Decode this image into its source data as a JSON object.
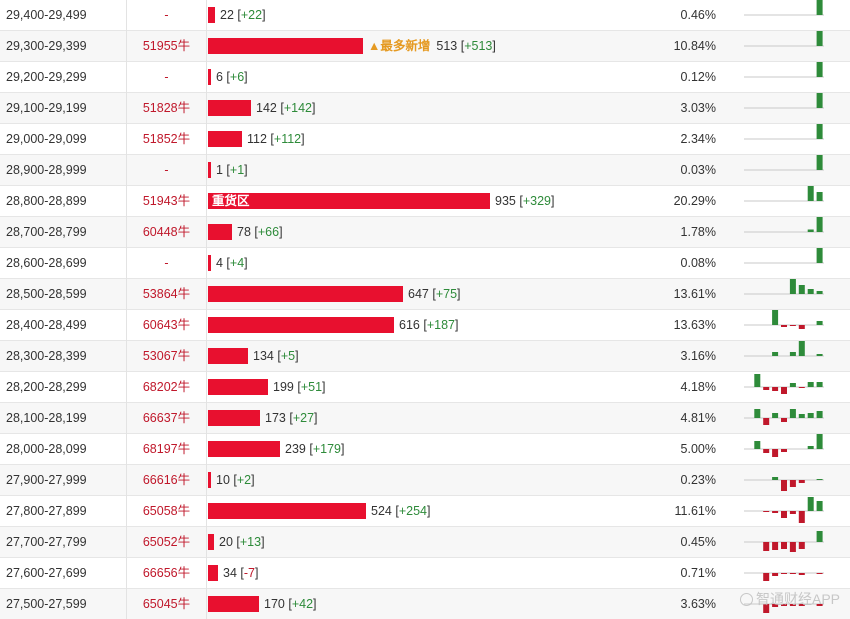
{
  "colors": {
    "bar": "#e8102f",
    "positive": "#2e8b3a",
    "negative": "#c0182b",
    "tag": "#e59a22"
  },
  "bar_max_count": 935,
  "rows": [
    {
      "range": "29,400-29,499",
      "date": "-",
      "count": "22",
      "change": "+22",
      "pct": "0.46%",
      "tag": "",
      "inbar": "",
      "spark": [
        0,
        0,
        0,
        0,
        0,
        0,
        0,
        0,
        30
      ]
    },
    {
      "range": "29,300-29,399",
      "date": "51955牛",
      "count": "513",
      "change": "+513",
      "pct": "10.84%",
      "tag": "▲最多新增",
      "inbar": "",
      "spark": [
        0,
        0,
        0,
        0,
        0,
        0,
        0,
        0,
        30
      ]
    },
    {
      "range": "29,200-29,299",
      "date": "-",
      "count": "6",
      "change": "+6",
      "pct": "0.12%",
      "tag": "",
      "inbar": "",
      "spark": [
        0,
        0,
        0,
        0,
        0,
        0,
        0,
        0,
        30
      ]
    },
    {
      "range": "29,100-29,199",
      "date": "51828牛",
      "count": "142",
      "change": "+142",
      "pct": "3.03%",
      "tag": "",
      "inbar": "",
      "spark": [
        0,
        0,
        0,
        0,
        0,
        0,
        0,
        0,
        30
      ]
    },
    {
      "range": "29,000-29,099",
      "date": "51852牛",
      "count": "112",
      "change": "+112",
      "pct": "2.34%",
      "tag": "",
      "inbar": "",
      "spark": [
        0,
        0,
        0,
        0,
        0,
        0,
        0,
        0,
        30
      ]
    },
    {
      "range": "28,900-28,999",
      "date": "-",
      "count": "1",
      "change": "+1",
      "pct": "0.03%",
      "tag": "",
      "inbar": "",
      "spark": [
        0,
        0,
        0,
        0,
        0,
        0,
        0,
        0,
        30
      ]
    },
    {
      "range": "28,800-28,899",
      "date": "51943牛",
      "count": "935",
      "change": "+329",
      "pct": "20.29%",
      "tag": "",
      "inbar": "重货区",
      "spark": [
        0,
        0,
        0,
        0,
        0,
        0,
        0,
        30,
        18
      ]
    },
    {
      "range": "28,700-28,799",
      "date": "60448牛",
      "count": "78",
      "change": "+66",
      "pct": "1.78%",
      "tag": "",
      "inbar": "",
      "spark": [
        0,
        0,
        0,
        0,
        0,
        0,
        0,
        5,
        30
      ]
    },
    {
      "range": "28,600-28,699",
      "date": "-",
      "count": "4",
      "change": "+4",
      "pct": "0.08%",
      "tag": "",
      "inbar": "",
      "spark": [
        0,
        0,
        0,
        0,
        0,
        0,
        0,
        0,
        30
      ]
    },
    {
      "range": "28,500-28,599",
      "date": "53864牛",
      "count": "647",
      "change": "+75",
      "pct": "13.61%",
      "tag": "",
      "inbar": "",
      "spark": [
        0,
        0,
        0,
        0,
        0,
        30,
        18,
        10,
        6
      ]
    },
    {
      "range": "28,400-28,499",
      "date": "60643牛",
      "count": "616",
      "change": "+187",
      "pct": "13.63%",
      "tag": "",
      "inbar": "",
      "spark": [
        0,
        0,
        0,
        30,
        -4,
        -2,
        -8,
        0,
        8
      ]
    },
    {
      "range": "28,300-28,399",
      "date": "53067牛",
      "count": "134",
      "change": "+5",
      "pct": "3.16%",
      "tag": "",
      "inbar": "",
      "spark": [
        0,
        0,
        0,
        8,
        0,
        8,
        30,
        0,
        4
      ]
    },
    {
      "range": "28,200-28,299",
      "date": "68202牛",
      "count": "199",
      "change": "+51",
      "pct": "4.18%",
      "tag": "",
      "inbar": "",
      "spark": [
        0,
        26,
        -6,
        -8,
        -14,
        8,
        -2,
        10,
        10
      ]
    },
    {
      "range": "28,100-28,199",
      "date": "66637牛",
      "count": "173",
      "change": "+27",
      "pct": "4.81%",
      "tag": "",
      "inbar": "",
      "spark": [
        0,
        18,
        -14,
        10,
        -8,
        18,
        8,
        10,
        14
      ]
    },
    {
      "range": "28,000-28,099",
      "date": "68197牛",
      "count": "239",
      "change": "+179",
      "pct": "5.00%",
      "tag": "",
      "inbar": "",
      "spark": [
        0,
        16,
        -8,
        -16,
        -6,
        0,
        0,
        6,
        30
      ]
    },
    {
      "range": "27,900-27,999",
      "date": "66616牛",
      "count": "10",
      "change": "+2",
      "pct": "0.23%",
      "tag": "",
      "inbar": "",
      "spark": [
        0,
        0,
        0,
        6,
        -22,
        -14,
        -6,
        0,
        2
      ]
    },
    {
      "range": "27,800-27,899",
      "date": "65058牛",
      "count": "524",
      "change": "+254",
      "pct": "11.61%",
      "tag": "",
      "inbar": "",
      "spark": [
        0,
        0,
        -2,
        -4,
        -14,
        -6,
        -24,
        28,
        20
      ]
    },
    {
      "range": "27,700-27,799",
      "date": "65052牛",
      "count": "20",
      "change": "+13",
      "pct": "0.45%",
      "tag": "",
      "inbar": "",
      "spark": [
        0,
        0,
        -18,
        -16,
        -14,
        -20,
        -14,
        0,
        22
      ]
    },
    {
      "range": "27,600-27,699",
      "date": "66656牛",
      "count": "34",
      "change": "-7",
      "pct": "0.71%",
      "tag": "",
      "inbar": "",
      "spark": [
        0,
        0,
        -16,
        -6,
        -2,
        -2,
        -4,
        0,
        -2
      ]
    },
    {
      "range": "27,500-27,599",
      "date": "65045牛",
      "count": "170",
      "change": "+42",
      "pct": "3.63%",
      "tag": "",
      "inbar": "",
      "spark": [
        0,
        0,
        -18,
        -6,
        -4,
        -4,
        -4,
        0,
        -4
      ]
    }
  ],
  "watermark": "智通财经APP"
}
